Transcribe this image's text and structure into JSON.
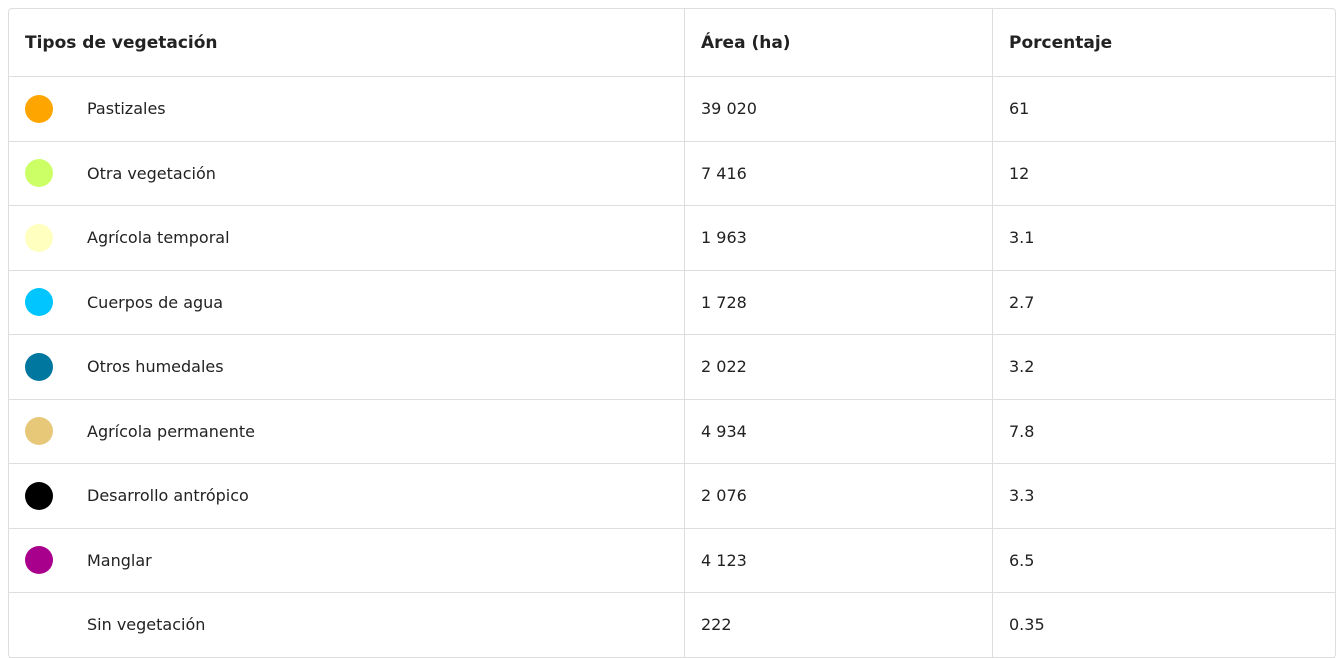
{
  "table": {
    "header": [
      "Tipos de vegetación",
      "Área (ha)",
      "Porcentaje"
    ],
    "rows": [
      {
        "color": "#ffa500",
        "label": "Pastizales",
        "area": "39 020",
        "percent": "61"
      },
      {
        "color": "#ccff66",
        "label": "Otra vegetación",
        "area": "7 416",
        "percent": "12"
      },
      {
        "color": "#ffffc0",
        "label": "Agrícola temporal",
        "area": "1 963",
        "percent": "3.1"
      },
      {
        "color": "#00c5ff",
        "label": "Cuerpos de agua",
        "area": "1 728",
        "percent": "2.7"
      },
      {
        "color": "#00779f",
        "label": "Otros humedales",
        "area": "2 022",
        "percent": "3.2"
      },
      {
        "color": "#e6c878",
        "label": "Agrícola permanente",
        "area": "4 934",
        "percent": "7.8"
      },
      {
        "color": "#000000",
        "label": "Desarrollo antrópico",
        "area": "2 076",
        "percent": "3.3"
      },
      {
        "color": "#a8008c",
        "label": "Manglar",
        "area": "4 123",
        "percent": "6.5"
      },
      {
        "label": "Sin vegetación",
        "area": "222",
        "percent": "0.35"
      }
    ]
  }
}
